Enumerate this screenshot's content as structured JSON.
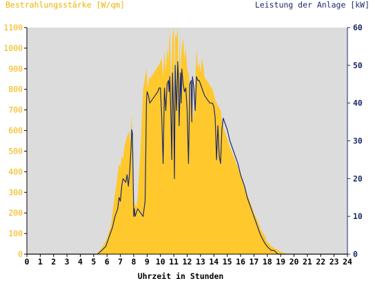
{
  "chart_data": {
    "type": "area",
    "title_left": "Bestrahlungsstärke [W/qm]",
    "title_right": "Leistung der Anlage [kW]",
    "xlabel": "Uhrzeit in Stunden",
    "x_ticks": [
      "0",
      "1",
      "2",
      "3",
      "4",
      "5",
      "6",
      "7",
      "8",
      "9",
      "10",
      "11",
      "12",
      "13",
      "14",
      "15",
      "16",
      "17",
      "18",
      "19",
      "20",
      "21",
      "22",
      "23",
      "24"
    ],
    "y_left_ticks": [
      "0",
      "100",
      "200",
      "300",
      "400",
      "500",
      "600",
      "700",
      "800",
      "900",
      "1000",
      "1100"
    ],
    "y_right_ticks": [
      "0",
      "10",
      "20",
      "30",
      "40",
      "50",
      "60"
    ],
    "xlim": [
      0,
      24
    ],
    "ylim_left": [
      0,
      1100
    ],
    "ylim_right": [
      0,
      60
    ],
    "colors": {
      "plot_bg": "#dcdcdc",
      "irradiance_fill": "#ffc82d",
      "power_line": "#1a2a6c",
      "left_axis_text": "#f2b200",
      "right_axis_text": "#1a2a6c",
      "axis": "#000000",
      "right_axis_line": "#1a2a6c"
    },
    "series": [
      {
        "axis": "left",
        "style": "area",
        "x": [
          0,
          5.2,
          5.5,
          5.8,
          6.0,
          6.3,
          6.5,
          6.7,
          6.9,
          7.0,
          7.1,
          7.2,
          7.3,
          7.45,
          7.55,
          7.65,
          7.75,
          7.85,
          7.9,
          7.95,
          8.0,
          8.1,
          8.2,
          8.3,
          8.5,
          8.7,
          8.85,
          8.95,
          9.05,
          9.15,
          9.3,
          9.5,
          9.7,
          9.9,
          10.1,
          10.2,
          10.3,
          10.4,
          10.5,
          10.6,
          10.7,
          10.8,
          10.9,
          11.0,
          11.05,
          11.1,
          11.2,
          11.3,
          11.35,
          11.45,
          11.5,
          11.6,
          11.7,
          11.8,
          11.9,
          12.0,
          12.1,
          12.2,
          12.3,
          12.4,
          12.5,
          12.6,
          12.7,
          12.8,
          12.9,
          13.0,
          13.1,
          13.2,
          13.3,
          13.5,
          13.7,
          13.9,
          14.1,
          14.3,
          14.5,
          14.6,
          14.7,
          14.8,
          15.0,
          15.2,
          15.5,
          15.8,
          16.0,
          16.3,
          16.5,
          16.8,
          17.0,
          17.3,
          17.5,
          17.8,
          18.0,
          18.3,
          18.5,
          18.8,
          19.0,
          19.3,
          19.5,
          19.8,
          20.0,
          20.2,
          24
        ],
        "values": [
          0,
          0,
          20,
          50,
          80,
          140,
          250,
          340,
          440,
          420,
          480,
          460,
          520,
          560,
          580,
          600,
          540,
          680,
          560,
          300,
          250,
          240,
          230,
          280,
          500,
          800,
          860,
          900,
          800,
          850,
          860,
          880,
          900,
          920,
          950,
          860,
          990,
          880,
          1000,
          940,
          1100,
          820,
          1060,
          1100,
          700,
          1070,
          1050,
          1100,
          720,
          1080,
          880,
          1000,
          1050,
          950,
          1000,
          900,
          880,
          820,
          720,
          650,
          700,
          830,
          1000,
          900,
          930,
          880,
          950,
          920,
          860,
          840,
          820,
          800,
          750,
          720,
          700,
          650,
          620,
          600,
          560,
          520,
          470,
          420,
          380,
          330,
          290,
          240,
          200,
          160,
          120,
          90,
          60,
          40,
          30,
          20,
          10,
          5,
          0,
          0,
          0,
          0,
          0
        ]
      },
      {
        "axis": "right",
        "style": "line",
        "x": [
          0,
          5.3,
          5.6,
          5.9,
          6.1,
          6.4,
          6.6,
          6.8,
          6.9,
          7.0,
          7.1,
          7.2,
          7.4,
          7.5,
          7.6,
          7.7,
          7.8,
          7.85,
          7.9,
          7.95,
          8.0,
          8.05,
          8.1,
          8.2,
          8.3,
          8.5,
          8.7,
          8.85,
          8.9,
          8.95,
          9.0,
          9.1,
          9.2,
          9.4,
          9.6,
          9.8,
          9.9,
          10.0,
          10.1,
          10.2,
          10.3,
          10.4,
          10.5,
          10.6,
          10.65,
          10.7,
          10.8,
          10.85,
          10.9,
          11.0,
          11.05,
          11.1,
          11.2,
          11.3,
          11.35,
          11.4,
          11.5,
          11.55,
          11.6,
          11.7,
          11.8,
          11.9,
          12.0,
          12.1,
          12.2,
          12.3,
          12.35,
          12.4,
          12.5,
          12.6,
          12.7,
          12.8,
          12.9,
          13.0,
          13.1,
          13.2,
          13.3,
          13.5,
          13.7,
          13.9,
          14.0,
          14.1,
          14.2,
          14.3,
          14.4,
          14.5,
          14.6,
          14.7,
          14.8,
          15.0,
          15.2,
          15.5,
          15.8,
          16.0,
          16.3,
          16.5,
          16.8,
          17.0,
          17.3,
          17.5,
          17.8,
          18.0,
          18.3,
          18.5,
          18.8,
          19.0,
          19.3,
          19.5,
          19.8,
          20.0,
          20.2,
          24
        ],
        "values": [
          0,
          0,
          1,
          2,
          4,
          7,
          10,
          12,
          15,
          14,
          18,
          20,
          19,
          21,
          18,
          22,
          28,
          33,
          32,
          22,
          10,
          12,
          10,
          11,
          12,
          11,
          10,
          14,
          26,
          40,
          43,
          42,
          40,
          41,
          42,
          43,
          44,
          44,
          36,
          24,
          44,
          38,
          45,
          46,
          43,
          47,
          34,
          25,
          48,
          36,
          20,
          50,
          38,
          51,
          46,
          34,
          48,
          40,
          49,
          45,
          43,
          44,
          38,
          24,
          45,
          46,
          35,
          47,
          44,
          38,
          47,
          46,
          46,
          45,
          44,
          43,
          42,
          41,
          40,
          40,
          39,
          36,
          25,
          34,
          26,
          24,
          33,
          36,
          35,
          33,
          30,
          27,
          24,
          21,
          18,
          15,
          12,
          10,
          7,
          5,
          3,
          2,
          1,
          1,
          0,
          0,
          0,
          0,
          0,
          0,
          0,
          0
        ]
      }
    ],
    "grid": false,
    "legend": "none"
  }
}
